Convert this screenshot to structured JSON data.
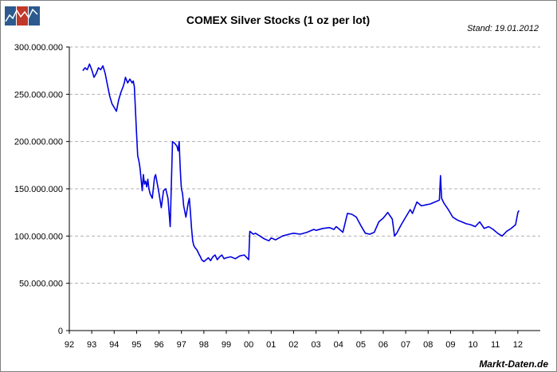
{
  "chart_data": {
    "type": "line",
    "title": "COMEX Silver Stocks (1 oz per lot)",
    "date_note": "Stand: 19.01.2012",
    "source": "Markt-Daten.de",
    "xlabel": "",
    "ylabel": "",
    "xlim": [
      1992.0,
      2013.0
    ],
    "ylim": [
      0,
      300000000
    ],
    "x_ticks": [
      {
        "label": "92",
        "value": 1992
      },
      {
        "label": "93",
        "value": 1993
      },
      {
        "label": "94",
        "value": 1994
      },
      {
        "label": "95",
        "value": 1995
      },
      {
        "label": "96",
        "value": 1996
      },
      {
        "label": "97",
        "value": 1997
      },
      {
        "label": "98",
        "value": 1998
      },
      {
        "label": "99",
        "value": 1999
      },
      {
        "label": "00",
        "value": 2000
      },
      {
        "label": "01",
        "value": 2001
      },
      {
        "label": "02",
        "value": 2002
      },
      {
        "label": "03",
        "value": 2003
      },
      {
        "label": "04",
        "value": 2004
      },
      {
        "label": "05",
        "value": 2005
      },
      {
        "label": "06",
        "value": 2006
      },
      {
        "label": "07",
        "value": 2007
      },
      {
        "label": "08",
        "value": 2008
      },
      {
        "label": "09",
        "value": 2009
      },
      {
        "label": "10",
        "value": 2010
      },
      {
        "label": "11",
        "value": 2011
      },
      {
        "label": "12",
        "value": 2012
      }
    ],
    "y_ticks": [
      {
        "label": "300.000.000",
        "value": 300000000
      },
      {
        "label": "250.000.000",
        "value": 250000000
      },
      {
        "label": "200.000.000",
        "value": 200000000
      },
      {
        "label": "150.000.000",
        "value": 150000000
      },
      {
        "label": "100.000.000",
        "value": 100000000
      },
      {
        "label": "50.000.000",
        "value": 50000000
      },
      {
        "label": "0",
        "value": 0
      }
    ],
    "grid": {
      "horizontal": true,
      "vertical": false
    },
    "line_color": "#0000e0",
    "series": [
      {
        "x": [
          1992.6,
          1992.7,
          1992.8,
          1992.9,
          1993.0,
          1993.1,
          1993.2,
          1993.3,
          1993.4,
          1993.5,
          1993.6,
          1993.7,
          1993.8,
          1993.9,
          1994.0,
          1994.1,
          1994.2,
          1994.3,
          1994.4,
          1994.45,
          1994.5,
          1994.6,
          1994.7,
          1994.8,
          1994.85,
          1994.9,
          1995.0,
          1995.05,
          1995.1,
          1995.15,
          1995.2,
          1995.25,
          1995.3,
          1995.35,
          1995.4,
          1995.45,
          1995.5,
          1995.55,
          1995.6,
          1995.7,
          1995.8,
          1995.85,
          1995.9,
          1996.0,
          1996.1,
          1996.2,
          1996.3,
          1996.4,
          1996.5,
          1996.6,
          1996.7,
          1996.8,
          1996.85,
          1996.9,
          1996.92,
          1996.95,
          1996.97,
          1997.0,
          1997.05,
          1997.1,
          1997.2,
          1997.3,
          1997.35,
          1997.4,
          1997.45,
          1997.5,
          1997.55,
          1997.6,
          1997.7,
          1997.8,
          1997.85,
          1997.9,
          1998.0,
          1998.1,
          1998.2,
          1998.3,
          1998.4,
          1998.5,
          1998.6,
          1998.7,
          1998.8,
          1998.9,
          1999.0,
          1999.2,
          1999.4,
          1999.6,
          1999.8,
          2000.0,
          2000.05,
          2000.1,
          2000.2,
          2000.3,
          2000.5,
          2000.7,
          2000.9,
          2001.0,
          2001.2,
          2001.5,
          2001.8,
          2002.0,
          2002.3,
          2002.6,
          2002.9,
          2003.0,
          2003.3,
          2003.6,
          2003.8,
          2003.9,
          2004.0,
          2004.2,
          2004.4,
          2004.6,
          2004.8,
          2005.0,
          2005.2,
          2005.4,
          2005.6,
          2005.8,
          2006.0,
          2006.2,
          2006.4,
          2006.5,
          2006.6,
          2006.8,
          2007.0,
          2007.2,
          2007.3,
          2007.4,
          2007.5,
          2007.7,
          2007.9,
          2008.1,
          2008.3,
          2008.5,
          2008.55,
          2008.6,
          2008.7,
          2008.9,
          2009.1,
          2009.3,
          2009.5,
          2009.7,
          2009.9,
          2010.1,
          2010.3,
          2010.5,
          2010.7,
          2010.9,
          2011.1,
          2011.3,
          2011.5,
          2011.7,
          2011.9,
          2012.0,
          2012.05
        ],
        "y": [
          275000000,
          278000000,
          276000000,
          282000000,
          276000000,
          268000000,
          272000000,
          278000000,
          276000000,
          280000000,
          272000000,
          260000000,
          248000000,
          240000000,
          236000000,
          232000000,
          244000000,
          252000000,
          258000000,
          262000000,
          268000000,
          262000000,
          266000000,
          262000000,
          264000000,
          258000000,
          208000000,
          185000000,
          180000000,
          172000000,
          160000000,
          148000000,
          165000000,
          155000000,
          158000000,
          152000000,
          160000000,
          150000000,
          145000000,
          140000000,
          162000000,
          165000000,
          158000000,
          145000000,
          130000000,
          148000000,
          150000000,
          140000000,
          110000000,
          200000000,
          198000000,
          195000000,
          190000000,
          200000000,
          185000000,
          170000000,
          160000000,
          150000000,
          145000000,
          132000000,
          120000000,
          135000000,
          140000000,
          125000000,
          108000000,
          95000000,
          90000000,
          88000000,
          85000000,
          80000000,
          78000000,
          75000000,
          73000000,
          75000000,
          77000000,
          74000000,
          78000000,
          80000000,
          75000000,
          78000000,
          80000000,
          76000000,
          77000000,
          78000000,
          76000000,
          79000000,
          80000000,
          75000000,
          105000000,
          104000000,
          102000000,
          103000000,
          100000000,
          97000000,
          95000000,
          98000000,
          96000000,
          100000000,
          102000000,
          103000000,
          102000000,
          104000000,
          107000000,
          106000000,
          108000000,
          109000000,
          107000000,
          110000000,
          108000000,
          104000000,
          124000000,
          123000000,
          120000000,
          111000000,
          103000000,
          102000000,
          104000000,
          115000000,
          119000000,
          125000000,
          118000000,
          100000000,
          103000000,
          112000000,
          120000000,
          128000000,
          124000000,
          130000000,
          136000000,
          132000000,
          133000000,
          134000000,
          136000000,
          138000000,
          164000000,
          140000000,
          135000000,
          128000000,
          120000000,
          117000000,
          115000000,
          113000000,
          112000000,
          110000000,
          115000000,
          108000000,
          110000000,
          107000000,
          103000000,
          100000000,
          105000000,
          108000000,
          112000000,
          125000000,
          127000000
        ]
      }
    ]
  },
  "logo": {
    "label": "Markt-Daten logo",
    "tile_colors": [
      "#2c5a8f",
      "#c0392b",
      "#2c5a8f"
    ]
  }
}
